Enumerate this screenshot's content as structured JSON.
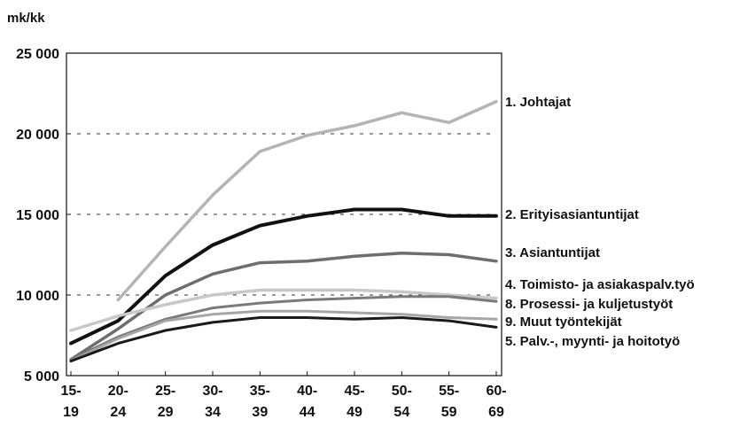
{
  "chart_data": {
    "type": "line",
    "unit_label": "mk/kk",
    "ylim": [
      5000,
      25000
    ],
    "y_ticks": [
      {
        "value": 5000,
        "label": "5 000"
      },
      {
        "value": 10000,
        "label": "10 000"
      },
      {
        "value": 15000,
        "label": "15 000"
      },
      {
        "value": 20000,
        "label": "20 000"
      },
      {
        "value": 25000,
        "label": "25 000"
      }
    ],
    "categories": [
      {
        "top": "15-",
        "bottom": "19"
      },
      {
        "top": "20-",
        "bottom": "24"
      },
      {
        "top": "25-",
        "bottom": "29"
      },
      {
        "top": "30-",
        "bottom": "34"
      },
      {
        "top": "35-",
        "bottom": "39"
      },
      {
        "top": "40-",
        "bottom": "44"
      },
      {
        "top": "45-",
        "bottom": "49"
      },
      {
        "top": "50-",
        "bottom": "54"
      },
      {
        "top": "55-",
        "bottom": "59"
      },
      {
        "top": "60-",
        "bottom": "69"
      }
    ],
    "grid": "dashed horizontal at 10 000, 15 000, 20 000",
    "series": [
      {
        "name": "1. Johtajat",
        "color": "#b4b4b4",
        "values": [
          null,
          9700,
          13000,
          16200,
          18900,
          19900,
          20500,
          21300,
          20700,
          22000
        ]
      },
      {
        "name": "2. Erityisasiantuntijat",
        "color": "#111111",
        "values": [
          7000,
          8400,
          11200,
          13100,
          14300,
          14900,
          15300,
          15300,
          14900,
          14900
        ]
      },
      {
        "name": "3. Asiantuntijat",
        "color": "#6e6e6e",
        "values": [
          6000,
          7900,
          10000,
          11300,
          12000,
          12100,
          12400,
          12600,
          12500,
          12100
        ]
      },
      {
        "name": "4. Toimisto- ja asiakaspalv.työ",
        "color": "#c8c8c8",
        "values": [
          7800,
          8700,
          9400,
          10000,
          10300,
          10300,
          10300,
          10200,
          10000,
          9800
        ]
      },
      {
        "name": "8. Prosessi- ja kuljetustyöt",
        "color": "#7a7a7a",
        "values": [
          6000,
          7400,
          8500,
          9200,
          9500,
          9700,
          9800,
          9900,
          9900,
          9600
        ]
      },
      {
        "name": "9. Muut työntekijät",
        "color": "#a6a6a6",
        "values": [
          5900,
          7300,
          8400,
          8800,
          9000,
          9000,
          8900,
          8800,
          8600,
          8500
        ]
      },
      {
        "name": "5. Palv.-, myynti- ja hoitotyö",
        "color": "#1a1a1a",
        "values": [
          5900,
          7000,
          7800,
          8300,
          8600,
          8600,
          8500,
          8600,
          8400,
          8000
        ]
      }
    ]
  }
}
